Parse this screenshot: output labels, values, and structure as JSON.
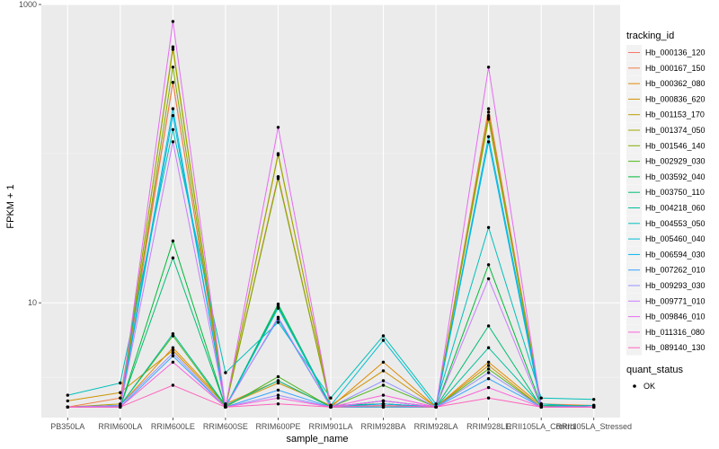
{
  "chart_data": {
    "type": "line",
    "xlabel": "sample_name",
    "ylabel": "FPKM + 1",
    "y_scale": "log10",
    "ylim": [
      1.7,
      1000
    ],
    "y_ticks": [
      {
        "value": 1000,
        "label": "1000"
      },
      {
        "value": 10,
        "label": "10"
      }
    ],
    "categories": [
      "PB350LA",
      "RRIM600LA",
      "RRIM600LE",
      "RRIM600SE",
      "RRIM600PE",
      "RRIM901LA",
      "RRIM928BA",
      "RRIM928LA",
      "RRIM928LE",
      "RRII105LA_Control",
      "RRII105LA_Stressed"
    ],
    "legend_title": "tracking_id",
    "legend_position": "right",
    "points_legend_title": "quant_status",
    "points_legend_label": "OK",
    "background": "#ebebeb",
    "grid": true,
    "series": [
      {
        "name": "Hb_000136_120",
        "color": "#F8766D",
        "values": [
          2,
          2,
          300,
          2,
          70,
          2,
          2.1,
          2,
          190,
          2.05,
          2
        ]
      },
      {
        "name": "Hb_000167_150",
        "color": "#EE8043",
        "values": [
          2,
          2.3,
          300,
          2,
          70,
          2,
          2,
          2,
          200,
          2.1,
          2.05
        ]
      },
      {
        "name": "Hb_000362_080",
        "color": "#E08A00",
        "values": [
          2,
          2.05,
          5,
          2.1,
          3,
          2,
          4,
          2,
          4,
          2.05,
          2
        ]
      },
      {
        "name": "Hb_000836_620",
        "color": "#CE9300",
        "values": [
          2.2,
          2.5,
          4.8,
          2.05,
          2.9,
          2.05,
          3.5,
          2,
          3.8,
          2,
          2.05
        ]
      },
      {
        "name": "Hb_001153_170",
        "color": "#B99E00",
        "values": [
          2,
          2.1,
          500,
          2,
          98,
          2.05,
          2.1,
          2,
          170,
          2.1,
          2
        ]
      },
      {
        "name": "Hb_001374_050",
        "color": "#A0A700",
        "values": [
          2,
          2,
          520,
          2,
          100,
          2,
          2,
          2,
          180,
          2,
          2
        ]
      },
      {
        "name": "Hb_001546_140",
        "color": "#7FAE00",
        "values": [
          2,
          2,
          380,
          2,
          68,
          2,
          2.05,
          2,
          175,
          2.05,
          2.05
        ]
      },
      {
        "name": "Hb_002929_030",
        "color": "#4FB51F",
        "values": [
          2,
          2.05,
          6,
          2,
          3.2,
          2,
          2.8,
          2,
          3.6,
          2,
          2
        ]
      },
      {
        "name": "Hb_003592_040",
        "color": "#00BA38",
        "values": [
          2,
          2,
          26,
          2,
          9.5,
          2,
          2.2,
          2,
          18,
          2.05,
          2
        ]
      },
      {
        "name": "Hb_003750_110",
        "color": "#00BD72",
        "values": [
          2,
          2,
          20,
          2,
          9.8,
          2.05,
          2.1,
          2,
          7,
          2,
          2
        ]
      },
      {
        "name": "Hb_004218_060",
        "color": "#00BF99",
        "values": [
          2,
          2.05,
          6.2,
          2.05,
          3,
          2,
          2.2,
          2,
          5,
          2.05,
          2
        ]
      },
      {
        "name": "Hb_004553_050",
        "color": "#00C0B9",
        "values": [
          2.4,
          2.9,
          145,
          3.4,
          7.4,
          2.3,
          6,
          2.1,
          32,
          2.3,
          2.25
        ]
      },
      {
        "name": "Hb_005460_040",
        "color": "#00BDD3",
        "values": [
          2,
          2.05,
          200,
          2,
          9.2,
          2.05,
          5.6,
          2,
          130,
          2.1,
          2
        ]
      },
      {
        "name": "Hb_006594_030",
        "color": "#00B5EB",
        "values": [
          2,
          2,
          180,
          2.05,
          7.8,
          2,
          2.1,
          2,
          120,
          2,
          2.05
        ]
      },
      {
        "name": "Hb_007262_010",
        "color": "#35A2FF",
        "values": [
          2,
          2,
          4.4,
          2,
          2.6,
          2,
          2,
          2,
          3.1,
          2,
          2
        ]
      },
      {
        "name": "Hb_009293_030",
        "color": "#9590FF",
        "values": [
          2,
          2.05,
          4.6,
          2,
          2.4,
          2,
          3,
          2,
          3.4,
          2,
          2
        ]
      },
      {
        "name": "Hb_009771_010",
        "color": "#C77CFF",
        "values": [
          2,
          2,
          120,
          2,
          8,
          2,
          2.2,
          2,
          14.5,
          2,
          2
        ]
      },
      {
        "name": "Hb_009846_010",
        "color": "#E76BF3",
        "values": [
          2,
          2,
          770,
          2,
          150,
          2,
          2.2,
          2,
          380,
          2,
          2
        ]
      },
      {
        "name": "Hb_011316_080",
        "color": "#FA62DB",
        "values": [
          2,
          2,
          4,
          2,
          2.3,
          2,
          2.4,
          2,
          2.7,
          2,
          2
        ]
      },
      {
        "name": "Hb_089140_130",
        "color": "#FF62BC",
        "values": [
          2,
          2,
          2.8,
          2,
          2.1,
          2,
          2.05,
          2,
          2.3,
          2,
          2
        ]
      }
    ]
  }
}
